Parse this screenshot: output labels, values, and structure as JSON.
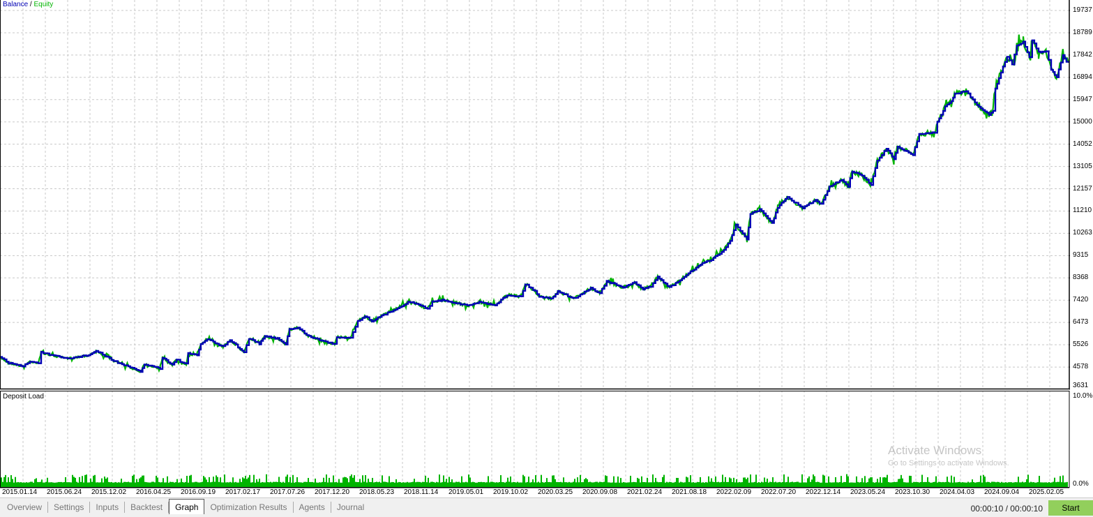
{
  "chart_data": [
    {
      "type": "line",
      "legend": {
        "balance": "Balance",
        "separator": " / ",
        "equity": "Equity"
      },
      "colors": {
        "balance": "#0000b4",
        "equity": "#00b400"
      },
      "grid": true,
      "ylim": [
        3631,
        19737
      ],
      "y_ticks": [
        "19737",
        "18789",
        "17842",
        "16894",
        "15947",
        "15000",
        "14052",
        "13105",
        "12157",
        "11210",
        "10263",
        "9315",
        "8368",
        "7420",
        "6473",
        "5526",
        "4578",
        "3631"
      ],
      "x_ticks": [
        "2015.01.14",
        "2015.06.24",
        "2015.12.02",
        "2016.04.25",
        "2016.09.19",
        "2017.02.17",
        "2017.07.26",
        "2017.12.20",
        "2018.05.23",
        "2018.11.14",
        "2019.05.01",
        "2019.10.02",
        "2020.03.25",
        "2020.09.08",
        "2021.02.24",
        "2021.08.18",
        "2022.02.09",
        "2022.07.20",
        "2022.12.14",
        "2023.05.24",
        "2023.10.30",
        "2024.04.03",
        "2024.09.04",
        "2025.02.05"
      ],
      "series": [
        {
          "name": "Balance",
          "points": [
            [
              "2015-01-06",
              4995
            ],
            [
              "2015-02-07",
              4758
            ],
            [
              "2015-03-30",
              4610
            ],
            [
              "2015-04-24",
              4817
            ],
            [
              "2015-05-24",
              4758
            ],
            [
              "2015-06-03",
              5203
            ],
            [
              "2015-07-18",
              5055
            ],
            [
              "2015-09-06",
              4936
            ],
            [
              "2015-11-20",
              5084
            ],
            [
              "2015-12-17",
              5262
            ],
            [
              "2016-02-18",
              4847
            ],
            [
              "2016-05-25",
              4373
            ],
            [
              "2016-06-07",
              4699
            ],
            [
              "2016-08-03",
              4521
            ],
            [
              "2016-08-11",
              4995
            ],
            [
              "2016-09-15",
              4669
            ],
            [
              "2016-09-30",
              4906
            ],
            [
              "2016-11-04",
              4699
            ],
            [
              "2016-11-11",
              5144
            ],
            [
              "2016-12-14",
              5084
            ],
            [
              "2016-12-26",
              5559
            ],
            [
              "2017-01-18",
              5767
            ],
            [
              "2017-03-16",
              5440
            ],
            [
              "2017-04-10",
              5737
            ],
            [
              "2017-05-30",
              5203
            ],
            [
              "2017-06-17",
              5796
            ],
            [
              "2017-07-24",
              5559
            ],
            [
              "2017-08-13",
              5885
            ],
            [
              "2017-09-27",
              5796
            ],
            [
              "2017-10-27",
              5559
            ],
            [
              "2017-11-09",
              6182
            ],
            [
              "2017-12-09",
              6241
            ],
            [
              "2018-01-18",
              5885
            ],
            [
              "2018-03-19",
              5648
            ],
            [
              "2018-04-20",
              5559
            ],
            [
              "2018-04-28",
              5856
            ],
            [
              "2018-06-17",
              5826
            ],
            [
              "2018-07-12",
              6538
            ],
            [
              "2018-08-06",
              6745
            ],
            [
              "2018-08-31",
              6538
            ],
            [
              "2018-10-20",
              6834
            ],
            [
              "2018-12-09",
              7131
            ],
            [
              "2019-01-08",
              7339
            ],
            [
              "2019-02-07",
              7279
            ],
            [
              "2019-03-19",
              7042
            ],
            [
              "2019-04-05",
              7368
            ],
            [
              "2019-05-18",
              7427
            ],
            [
              "2019-07-07",
              7279
            ],
            [
              "2019-08-16",
              7190
            ],
            [
              "2019-09-20",
              7339
            ],
            [
              "2019-11-16",
              7220
            ],
            [
              "2019-12-29",
              7635
            ],
            [
              "2020-02-17",
              7576
            ],
            [
              "2020-03-03",
              8110
            ],
            [
              "2020-04-07",
              7813
            ],
            [
              "2020-04-22",
              7576
            ],
            [
              "2020-06-03",
              7487
            ],
            [
              "2020-06-28",
              7813
            ],
            [
              "2020-08-25",
              7487
            ],
            [
              "2020-10-24",
              7932
            ],
            [
              "2020-11-25",
              7724
            ],
            [
              "2020-12-20",
              8228
            ],
            [
              "2021-02-16",
              7961
            ],
            [
              "2021-03-30",
              8169
            ],
            [
              "2021-04-29",
              7872
            ],
            [
              "2021-05-27",
              8021
            ],
            [
              "2021-06-21",
              8406
            ],
            [
              "2021-08-02",
              7961
            ],
            [
              "2021-09-01",
              8199
            ],
            [
              "2021-10-09",
              8555
            ],
            [
              "2021-11-28",
              9000
            ],
            [
              "2021-12-30",
              9118
            ],
            [
              "2022-02-13",
              9563
            ],
            [
              "2022-03-08",
              9949
            ],
            [
              "2022-03-28",
              10631
            ],
            [
              "2022-05-07",
              10008
            ],
            [
              "2022-05-19",
              11076
            ],
            [
              "2022-06-21",
              11283
            ],
            [
              "2022-08-05",
              10690
            ],
            [
              "2022-08-25",
              11372
            ],
            [
              "2022-09-29",
              11788
            ],
            [
              "2022-11-23",
              11343
            ],
            [
              "2023-01-07",
              11669
            ],
            [
              "2023-01-29",
              11491
            ],
            [
              "2023-02-26",
              12232
            ],
            [
              "2023-04-12",
              12559
            ],
            [
              "2023-05-04",
              12232
            ],
            [
              "2023-05-19",
              12915
            ],
            [
              "2023-06-23",
              12707
            ],
            [
              "2023-07-26",
              12321
            ],
            [
              "2023-08-17",
              13359
            ],
            [
              "2023-09-19",
              13864
            ],
            [
              "2023-10-16",
              13419
            ],
            [
              "2023-10-29",
              13953
            ],
            [
              "2023-12-23",
              13597
            ],
            [
              "2024-01-14",
              14487
            ],
            [
              "2024-03-09",
              14546
            ],
            [
              "2024-03-19",
              14991
            ],
            [
              "2024-04-16",
              15643
            ],
            [
              "2024-05-08",
              15880
            ],
            [
              "2024-05-21",
              16177
            ],
            [
              "2024-06-30",
              16325
            ],
            [
              "2024-08-01",
              15821
            ],
            [
              "2024-09-20",
              15287
            ],
            [
              "2024-10-05",
              15495
            ],
            [
              "2024-10-13",
              16385
            ],
            [
              "2024-11-02",
              17127
            ],
            [
              "2024-11-24",
              17750
            ],
            [
              "2024-12-12",
              17453
            ],
            [
              "2024-12-29",
              18254
            ],
            [
              "2025-01-21",
              18402
            ],
            [
              "2025-02-12",
              17750
            ],
            [
              "2025-02-22",
              18491
            ],
            [
              "2025-03-17",
              17957
            ],
            [
              "2025-04-13",
              18016
            ],
            [
              "2025-05-01",
              17215
            ],
            [
              "2025-05-21",
              16918
            ],
            [
              "2025-06-12",
              17868
            ],
            [
              "2025-06-25",
              17571
            ],
            [
              "2025-07-05",
              17600
            ]
          ]
        },
        {
          "name": "Equity",
          "color": "#00b400"
        }
      ]
    },
    {
      "type": "bar",
      "title": "Deposit Load",
      "ylim": [
        0,
        10
      ],
      "y_ticks": [
        "10.0%",
        "0.0%"
      ],
      "color": "#00b400"
    }
  ],
  "tabs": [
    {
      "label": "Overview"
    },
    {
      "label": "Settings"
    },
    {
      "label": "Inputs"
    },
    {
      "label": "Backtest"
    },
    {
      "label": "Graph",
      "active": true
    },
    {
      "label": "Optimization Results"
    },
    {
      "label": "Agents"
    },
    {
      "label": "Journal"
    }
  ],
  "status": {
    "timer": "00:00:10 / 00:00:10",
    "start_label": "Start"
  },
  "watermark": {
    "line1": "Activate Windows",
    "line2": "Go to Settings to activate Windows."
  }
}
